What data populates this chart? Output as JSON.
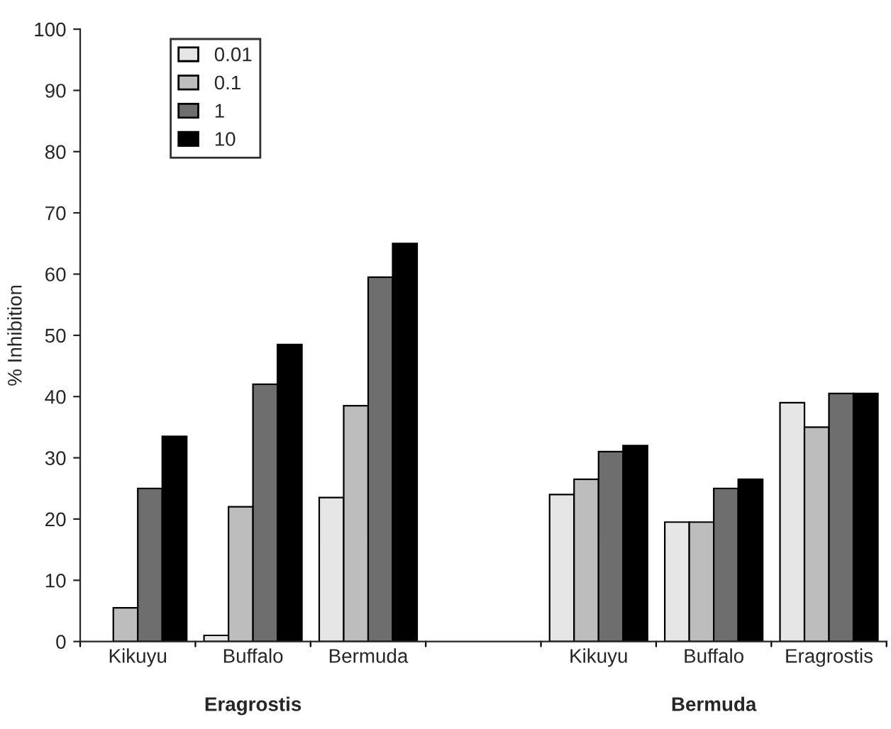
{
  "chart_data": {
    "type": "bar",
    "ylabel": "% Inhibition",
    "categories": [
      "Kikuyu",
      "Buffalo",
      "Bermuda",
      null,
      "Kikuyu",
      "Buffalo",
      "Eragrostis"
    ],
    "series": [
      {
        "name": "0.01",
        "color": "#e6e6e6",
        "values": [
          null,
          1,
          23.5,
          null,
          24,
          19.5,
          39
        ]
      },
      {
        "name": "0.1",
        "color": "#bdbdbd",
        "values": [
          5.5,
          22,
          38.5,
          null,
          26.5,
          19.5,
          35
        ]
      },
      {
        "name": "1",
        "color": "#6e6e6e",
        "values": [
          25,
          42,
          59.5,
          null,
          31,
          25,
          40.5
        ]
      },
      {
        "name": "10",
        "color": "#000000",
        "values": [
          33.5,
          48.5,
          65,
          null,
          32,
          26.5,
          40.5
        ]
      }
    ],
    "annotations": [
      "Eragrostis",
      "Bermuda"
    ],
    "ylim": [
      0,
      100
    ],
    "yticks": [
      0,
      10,
      20,
      30,
      40,
      50,
      60,
      70,
      80,
      90,
      100
    ],
    "grid": false,
    "legend": "top left"
  }
}
